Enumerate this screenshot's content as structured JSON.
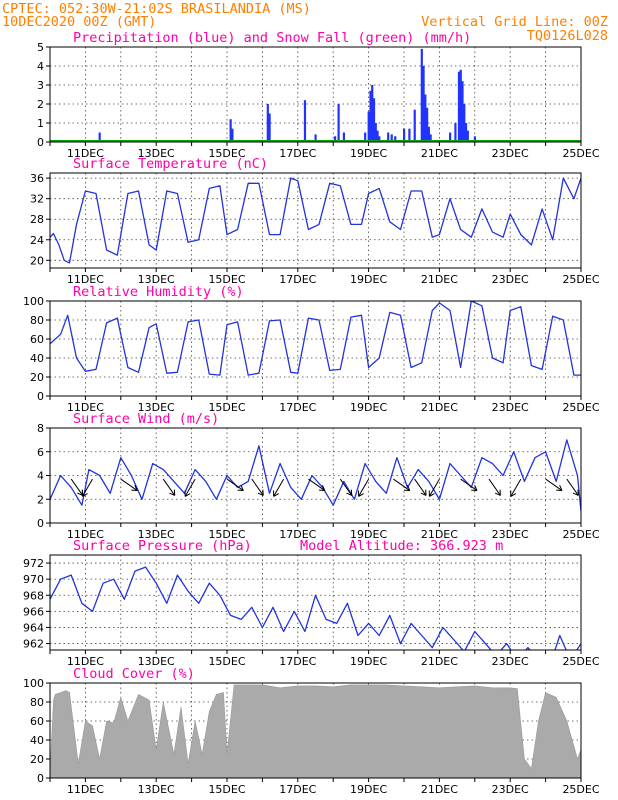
{
  "header": {
    "line1_left": "CPTEC:  052:30W-21:02S  BRASILANDIA (MS)",
    "line2_left": "10DEC2020 00Z (GMT)",
    "line2_right": "Vertical Grid Line: 00Z",
    "line3_right": "TQ0126L028"
  },
  "colors": {
    "header": "#ff7f00",
    "title": "#ff00aa",
    "line": "#2233dd",
    "precip": "#2233ff",
    "snow": "#00aa00",
    "cloud": "#aaaaaa"
  },
  "x_axis": {
    "start_day": 10,
    "end_day": 25,
    "tick_labels": [
      "11DEC",
      "13DEC",
      "15DEC",
      "17DEC",
      "19DEC",
      "21DEC",
      "23DEC",
      "25DEC"
    ]
  },
  "chart_data": [
    {
      "type": "bar",
      "title": "Precipitation (blue) and Snow Fall (green) (mm/h)",
      "ylim": [
        0,
        5
      ],
      "yticks": [
        "0",
        "1",
        "2",
        "3",
        "4",
        "5"
      ],
      "series": [
        {
          "name": "Precipitation",
          "x": [
            11.4,
            15.1,
            15.15,
            16.15,
            16.2,
            17.2,
            17.5,
            18.05,
            18.15,
            18.3,
            18.9,
            19.0,
            19.05,
            19.1,
            19.15,
            19.2,
            19.25,
            19.3,
            19.55,
            19.65,
            19.75,
            20.0,
            20.15,
            20.3,
            20.5,
            20.55,
            20.6,
            20.65,
            20.7,
            20.75,
            21.3,
            21.45,
            21.55,
            21.6,
            21.65,
            21.7,
            21.75,
            21.8,
            22.0
          ],
          "values": [
            0.5,
            1.2,
            0.7,
            2.0,
            1.5,
            2.2,
            0.4,
            0.3,
            2.0,
            0.5,
            0.5,
            1.6,
            2.7,
            3.0,
            2.3,
            1.0,
            0.6,
            0.3,
            0.5,
            0.4,
            0.3,
            0.7,
            0.7,
            1.7,
            4.9,
            4.0,
            2.5,
            1.8,
            0.8,
            0.4,
            0.5,
            1.0,
            3.7,
            3.8,
            3.2,
            2.0,
            1.0,
            0.6,
            0.3
          ]
        },
        {
          "name": "Snow Fall",
          "x": [],
          "values": []
        }
      ]
    },
    {
      "type": "line",
      "title": "Surface Temperature (nC)",
      "ylim": [
        18.5,
        37
      ],
      "yticks": [
        "20",
        "24",
        "28",
        "32",
        "36"
      ],
      "series": [
        {
          "name": "",
          "x": [
            10.0,
            10.1,
            10.25,
            10.4,
            10.55,
            10.75,
            11.0,
            11.3,
            11.6,
            11.9,
            12.2,
            12.5,
            12.8,
            13.0,
            13.3,
            13.6,
            13.9,
            14.2,
            14.5,
            14.8,
            15.0,
            15.3,
            15.6,
            15.9,
            16.2,
            16.5,
            16.8,
            17.0,
            17.3,
            17.6,
            17.9,
            18.2,
            18.5,
            18.8,
            19.0,
            19.3,
            19.6,
            19.9,
            20.2,
            20.5,
            20.8,
            21.0,
            21.3,
            21.6,
            21.9,
            22.2,
            22.5,
            22.8,
            23.0,
            23.3,
            23.6,
            23.9,
            24.2,
            24.5,
            24.8,
            25.0
          ],
          "values": [
            24.5,
            25.2,
            23.0,
            20.0,
            19.5,
            27.0,
            33.5,
            33.0,
            22.0,
            21.0,
            33.0,
            33.5,
            23.0,
            22.0,
            33.5,
            33.0,
            23.5,
            24.0,
            34.0,
            34.5,
            25.0,
            26.0,
            35.0,
            35.0,
            25.0,
            25.0,
            36.0,
            35.5,
            26.0,
            27.0,
            35.0,
            34.5,
            27.0,
            27.0,
            33.0,
            34.0,
            27.5,
            26.0,
            33.5,
            33.5,
            24.5,
            25.0,
            32.0,
            26.0,
            24.5,
            30.0,
            25.5,
            24.5,
            29.0,
            25.0,
            23.0,
            30.0,
            24.0,
            36.0,
            32.0,
            36.0
          ]
        }
      ]
    },
    {
      "type": "line",
      "title": "Relative Humidity (%)",
      "ylim": [
        0,
        100
      ],
      "yticks": [
        "0",
        "20",
        "40",
        "60",
        "80",
        "100"
      ],
      "series": [
        {
          "name": "",
          "x": [
            10.0,
            10.3,
            10.5,
            10.75,
            11.0,
            11.3,
            11.6,
            11.9,
            12.2,
            12.5,
            12.8,
            13.0,
            13.3,
            13.6,
            13.9,
            14.2,
            14.5,
            14.8,
            15.0,
            15.3,
            15.6,
            15.9,
            16.2,
            16.5,
            16.8,
            17.0,
            17.3,
            17.6,
            17.9,
            18.2,
            18.5,
            18.8,
            19.0,
            19.3,
            19.6,
            19.9,
            20.2,
            20.5,
            20.8,
            21.0,
            21.3,
            21.6,
            21.9,
            22.2,
            22.5,
            22.8,
            23.0,
            23.3,
            23.6,
            23.9,
            24.2,
            24.5,
            24.8,
            25.0
          ],
          "values": [
            55,
            65,
            85,
            40,
            26,
            28,
            77,
            82,
            30,
            25,
            72,
            76,
            24,
            25,
            78,
            80,
            23,
            22,
            75,
            78,
            22,
            24,
            79,
            80,
            25,
            24,
            82,
            80,
            27,
            28,
            83,
            85,
            30,
            40,
            88,
            85,
            30,
            35,
            90,
            98,
            90,
            30,
            100,
            95,
            40,
            35,
            90,
            94,
            32,
            28,
            84,
            80,
            22,
            22
          ]
        }
      ]
    },
    {
      "type": "line",
      "title": "Surface Wind (m/s)",
      "ylim": [
        0,
        8
      ],
      "yticks": [
        "0",
        "2",
        "4",
        "6",
        "8"
      ],
      "series": [
        {
          "name": "",
          "x": [
            10.0,
            10.3,
            10.6,
            10.9,
            11.1,
            11.4,
            11.7,
            12.0,
            12.3,
            12.6,
            12.9,
            13.2,
            13.5,
            13.8,
            14.1,
            14.4,
            14.7,
            15.0,
            15.3,
            15.6,
            15.9,
            16.2,
            16.5,
            16.8,
            17.1,
            17.4,
            17.7,
            18.0,
            18.3,
            18.6,
            18.9,
            19.2,
            19.5,
            19.8,
            20.1,
            20.4,
            20.7,
            21.0,
            21.3,
            21.6,
            21.9,
            22.2,
            22.5,
            22.8,
            23.1,
            23.4,
            23.7,
            24.0,
            24.3,
            24.6,
            24.9,
            25.0
          ],
          "values": [
            2.0,
            4.0,
            3.0,
            1.5,
            4.5,
            4.0,
            2.5,
            5.5,
            4.0,
            2.0,
            5.0,
            4.5,
            3.5,
            2.5,
            4.5,
            3.5,
            2.0,
            4.0,
            3.0,
            3.5,
            6.5,
            2.5,
            5.0,
            3.0,
            2.0,
            4.0,
            3.0,
            1.5,
            3.5,
            2.0,
            5.0,
            3.5,
            2.5,
            5.5,
            3.0,
            4.5,
            3.5,
            2.0,
            5.0,
            4.0,
            3.0,
            5.5,
            5.0,
            4.0,
            6.0,
            3.5,
            5.5,
            6.0,
            3.5,
            7.0,
            4.0,
            1.0
          ]
        }
      ],
      "arrow_days": [
        10.6,
        11.2,
        12.0,
        13.2,
        14.1,
        15.0,
        15.7,
        16.6,
        17.3,
        18.2,
        19.0,
        19.7,
        20.3,
        21.0,
        21.6,
        22.4,
        23.3,
        24.0,
        24.6
      ]
    },
    {
      "type": "line",
      "title": "Surface Pressure (hPa)",
      "subtitle": "Model Altitude: 366.923 m",
      "ylim": [
        961.2,
        973
      ],
      "yticks": [
        "962",
        "964",
        "966",
        "968",
        "970",
        "972"
      ],
      "series": [
        {
          "name": "",
          "x": [
            10.0,
            10.3,
            10.6,
            10.9,
            11.2,
            11.5,
            11.8,
            12.1,
            12.4,
            12.7,
            13.0,
            13.3,
            13.6,
            13.9,
            14.2,
            14.5,
            14.8,
            15.1,
            15.4,
            15.7,
            16.0,
            16.3,
            16.6,
            16.9,
            17.2,
            17.5,
            17.8,
            18.1,
            18.4,
            18.7,
            19.0,
            19.3,
            19.6,
            19.9,
            20.2,
            20.5,
            20.8,
            21.1,
            21.4,
            21.7,
            22.0,
            22.3,
            22.6,
            22.9,
            23.2,
            23.5,
            23.8,
            24.1,
            24.4,
            24.7,
            25.0
          ],
          "values": [
            967.5,
            970.0,
            970.5,
            967.0,
            966.0,
            969.5,
            970.0,
            967.5,
            971.0,
            971.5,
            969.5,
            967.0,
            970.5,
            968.5,
            967.0,
            969.5,
            968.0,
            965.5,
            965.0,
            966.5,
            964.0,
            966.5,
            963.5,
            966.0,
            963.5,
            968.0,
            965.0,
            964.5,
            967.0,
            963.0,
            964.5,
            963.0,
            965.5,
            962.0,
            964.5,
            963.0,
            961.5,
            964.0,
            962.5,
            961.0,
            963.5,
            962.0,
            960.5,
            962.0,
            960.0,
            961.5,
            960.0,
            959.0,
            963.0,
            960.0,
            962.0
          ]
        }
      ]
    },
    {
      "type": "area",
      "title": "Cloud Cover (%)",
      "ylim": [
        0,
        100
      ],
      "yticks": [
        "0",
        "20",
        "40",
        "60",
        "80",
        "100"
      ],
      "series": [
        {
          "name": "",
          "x": [
            10.0,
            10.1,
            10.15,
            10.3,
            10.45,
            10.55,
            10.8,
            11.0,
            11.2,
            11.4,
            11.6,
            11.8,
            12.0,
            12.2,
            12.5,
            12.8,
            13.0,
            13.2,
            13.5,
            13.7,
            13.9,
            14.1,
            14.3,
            14.5,
            14.7,
            14.9,
            15.0,
            15.2,
            15.5,
            15.8,
            16.0,
            16.5,
            17.0,
            17.5,
            18.0,
            18.5,
            19.0,
            19.5,
            20.0,
            20.5,
            21.0,
            21.5,
            22.0,
            22.5,
            23.0,
            23.2,
            23.4,
            23.6,
            23.8,
            24.0,
            24.3,
            24.6,
            24.9,
            25.0
          ],
          "values": [
            5,
            82,
            88,
            90,
            92,
            90,
            15,
            60,
            55,
            20,
            60,
            58,
            85,
            60,
            88,
            82,
            30,
            80,
            25,
            75,
            15,
            60,
            25,
            70,
            88,
            90,
            25,
            98,
            98,
            98,
            98,
            95,
            97,
            97,
            96,
            98,
            98,
            98,
            97,
            96,
            95,
            96,
            97,
            95,
            95,
            94,
            20,
            10,
            60,
            90,
            85,
            60,
            20,
            30
          ]
        }
      ]
    }
  ]
}
